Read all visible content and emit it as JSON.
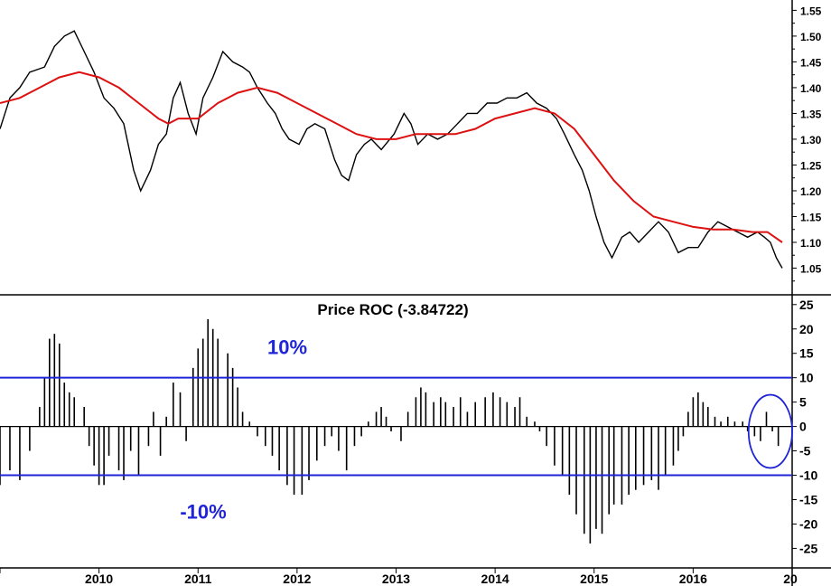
{
  "chart_data": [
    {
      "type": "line",
      "panel": "price",
      "title": "",
      "ylabel": "",
      "ylim": [
        1.0,
        1.57
      ],
      "yticks": [
        "1.55",
        "1.50",
        "1.45",
        "1.40",
        "1.35",
        "1.30",
        "1.25",
        "1.20",
        "1.15",
        "1.10",
        "1.05"
      ],
      "series": [
        {
          "color": "#000000",
          "values": [
            [
              2009.0,
              1.32
            ],
            [
              2009.1,
              1.38
            ],
            [
              2009.2,
              1.4
            ],
            [
              2009.3,
              1.43
            ],
            [
              2009.45,
              1.44
            ],
            [
              2009.55,
              1.48
            ],
            [
              2009.65,
              1.5
            ],
            [
              2009.75,
              1.51
            ],
            [
              2009.85,
              1.47
            ],
            [
              2009.95,
              1.43
            ],
            [
              2010.05,
              1.38
            ],
            [
              2010.15,
              1.36
            ],
            [
              2010.25,
              1.33
            ],
            [
              2010.35,
              1.24
            ],
            [
              2010.42,
              1.2
            ],
            [
              2010.52,
              1.24
            ],
            [
              2010.6,
              1.29
            ],
            [
              2010.68,
              1.31
            ],
            [
              2010.75,
              1.38
            ],
            [
              2010.82,
              1.41
            ],
            [
              2010.9,
              1.35
            ],
            [
              2010.98,
              1.31
            ],
            [
              2011.05,
              1.38
            ],
            [
              2011.15,
              1.42
            ],
            [
              2011.25,
              1.47
            ],
            [
              2011.35,
              1.45
            ],
            [
              2011.45,
              1.44
            ],
            [
              2011.52,
              1.43
            ],
            [
              2011.6,
              1.4
            ],
            [
              2011.7,
              1.37
            ],
            [
              2011.78,
              1.35
            ],
            [
              2011.85,
              1.32
            ],
            [
              2011.92,
              1.3
            ],
            [
              2012.02,
              1.29
            ],
            [
              2012.1,
              1.32
            ],
            [
              2012.18,
              1.33
            ],
            [
              2012.28,
              1.32
            ],
            [
              2012.38,
              1.26
            ],
            [
              2012.45,
              1.23
            ],
            [
              2012.52,
              1.22
            ],
            [
              2012.6,
              1.27
            ],
            [
              2012.68,
              1.29
            ],
            [
              2012.75,
              1.3
            ],
            [
              2012.85,
              1.28
            ],
            [
              2012.98,
              1.31
            ],
            [
              2013.08,
              1.35
            ],
            [
              2013.15,
              1.33
            ],
            [
              2013.22,
              1.29
            ],
            [
              2013.32,
              1.31
            ],
            [
              2013.42,
              1.3
            ],
            [
              2013.52,
              1.31
            ],
            [
              2013.62,
              1.33
            ],
            [
              2013.72,
              1.35
            ],
            [
              2013.82,
              1.35
            ],
            [
              2013.92,
              1.37
            ],
            [
              2014.02,
              1.37
            ],
            [
              2014.12,
              1.38
            ],
            [
              2014.22,
              1.38
            ],
            [
              2014.32,
              1.39
            ],
            [
              2014.42,
              1.37
            ],
            [
              2014.52,
              1.36
            ],
            [
              2014.62,
              1.34
            ],
            [
              2014.7,
              1.31
            ],
            [
              2014.8,
              1.27
            ],
            [
              2014.88,
              1.24
            ],
            [
              2014.95,
              1.2
            ],
            [
              2015.02,
              1.15
            ],
            [
              2015.1,
              1.1
            ],
            [
              2015.18,
              1.07
            ],
            [
              2015.28,
              1.11
            ],
            [
              2015.36,
              1.12
            ],
            [
              2015.45,
              1.1
            ],
            [
              2015.55,
              1.12
            ],
            [
              2015.65,
              1.14
            ],
            [
              2015.75,
              1.12
            ],
            [
              2015.85,
              1.08
            ],
            [
              2015.95,
              1.09
            ],
            [
              2016.05,
              1.09
            ],
            [
              2016.15,
              1.12
            ],
            [
              2016.25,
              1.14
            ],
            [
              2016.35,
              1.13
            ],
            [
              2016.45,
              1.12
            ],
            [
              2016.55,
              1.11
            ],
            [
              2016.65,
              1.12
            ],
            [
              2016.72,
              1.11
            ],
            [
              2016.78,
              1.1
            ],
            [
              2016.84,
              1.07
            ],
            [
              2016.9,
              1.05
            ]
          ]
        },
        {
          "color": "#dd1111",
          "values": [
            [
              2009.0,
              1.37
            ],
            [
              2009.2,
              1.38
            ],
            [
              2009.4,
              1.4
            ],
            [
              2009.6,
              1.42
            ],
            [
              2009.8,
              1.43
            ],
            [
              2010.0,
              1.42
            ],
            [
              2010.2,
              1.4
            ],
            [
              2010.4,
              1.37
            ],
            [
              2010.6,
              1.34
            ],
            [
              2010.7,
              1.33
            ],
            [
              2010.8,
              1.34
            ],
            [
              2011.0,
              1.34
            ],
            [
              2011.2,
              1.37
            ],
            [
              2011.4,
              1.39
            ],
            [
              2011.6,
              1.4
            ],
            [
              2011.8,
              1.39
            ],
            [
              2012.0,
              1.37
            ],
            [
              2012.2,
              1.35
            ],
            [
              2012.4,
              1.33
            ],
            [
              2012.6,
              1.31
            ],
            [
              2012.8,
              1.3
            ],
            [
              2013.0,
              1.3
            ],
            [
              2013.2,
              1.31
            ],
            [
              2013.4,
              1.31
            ],
            [
              2013.6,
              1.31
            ],
            [
              2013.8,
              1.32
            ],
            [
              2014.0,
              1.34
            ],
            [
              2014.2,
              1.35
            ],
            [
              2014.4,
              1.36
            ],
            [
              2014.6,
              1.35
            ],
            [
              2014.8,
              1.32
            ],
            [
              2015.0,
              1.27
            ],
            [
              2015.2,
              1.22
            ],
            [
              2015.4,
              1.18
            ],
            [
              2015.6,
              1.15
            ],
            [
              2015.8,
              1.14
            ],
            [
              2016.0,
              1.13
            ],
            [
              2016.2,
              1.125
            ],
            [
              2016.4,
              1.125
            ],
            [
              2016.6,
              1.12
            ],
            [
              2016.75,
              1.12
            ],
            [
              2016.9,
              1.1
            ]
          ]
        }
      ]
    },
    {
      "type": "bar",
      "panel": "roc",
      "title": "Price ROC (-3.84722)",
      "ylabel": "",
      "ylim": [
        -29,
        27
      ],
      "yticks": [
        "25",
        "20",
        "15",
        "10",
        "5",
        "0",
        "-5",
        "-10",
        "-15",
        "-20",
        "-25"
      ],
      "xticks": [
        "2010",
        "2011",
        "2012",
        "2013",
        "2014",
        "2015",
        "2016",
        "20"
      ],
      "bar_color": "#000000",
      "reference_lines": [
        {
          "value": 10,
          "label": "10%",
          "color": "#1f24d6"
        },
        {
          "value": -10,
          "label": "-10%",
          "color": "#1f24d6"
        }
      ],
      "highlight_ellipse": {
        "x_center": 2016.78,
        "y_center": -1,
        "x_radius": 0.22,
        "y_radius": 7.5,
        "color": "#1f24d6"
      },
      "values": [
        [
          2009.0,
          -12
        ],
        [
          2009.1,
          -9
        ],
        [
          2009.2,
          -11
        ],
        [
          2009.3,
          -5
        ],
        [
          2009.4,
          4
        ],
        [
          2009.45,
          10
        ],
        [
          2009.5,
          18
        ],
        [
          2009.55,
          19
        ],
        [
          2009.6,
          17
        ],
        [
          2009.65,
          9
        ],
        [
          2009.7,
          7
        ],
        [
          2009.75,
          6
        ],
        [
          2009.85,
          4
        ],
        [
          2009.9,
          -4
        ],
        [
          2009.95,
          -8
        ],
        [
          2010.0,
          -12
        ],
        [
          2010.05,
          -12
        ],
        [
          2010.1,
          -6
        ],
        [
          2010.2,
          -9
        ],
        [
          2010.25,
          -11
        ],
        [
          2010.32,
          -5
        ],
        [
          2010.4,
          -10
        ],
        [
          2010.5,
          -4
        ],
        [
          2010.55,
          3
        ],
        [
          2010.62,
          -6
        ],
        [
          2010.68,
          2
        ],
        [
          2010.75,
          9
        ],
        [
          2010.82,
          7
        ],
        [
          2010.88,
          -3
        ],
        [
          2010.95,
          12
        ],
        [
          2011.0,
          16
        ],
        [
          2011.05,
          18
        ],
        [
          2011.1,
          22
        ],
        [
          2011.15,
          20
        ],
        [
          2011.2,
          18
        ],
        [
          2011.3,
          15
        ],
        [
          2011.35,
          12
        ],
        [
          2011.4,
          8
        ],
        [
          2011.45,
          3
        ],
        [
          2011.52,
          1
        ],
        [
          2011.6,
          -2
        ],
        [
          2011.68,
          -4
        ],
        [
          2011.75,
          -6
        ],
        [
          2011.82,
          -9
        ],
        [
          2011.9,
          -12
        ],
        [
          2011.97,
          -14
        ],
        [
          2012.05,
          -14
        ],
        [
          2012.12,
          -11
        ],
        [
          2012.2,
          -7
        ],
        [
          2012.28,
          -4
        ],
        [
          2012.35,
          -2
        ],
        [
          2012.42,
          -5
        ],
        [
          2012.5,
          -9
        ],
        [
          2012.58,
          -4
        ],
        [
          2012.65,
          -2
        ],
        [
          2012.72,
          1
        ],
        [
          2012.8,
          3
        ],
        [
          2012.85,
          4
        ],
        [
          2012.9,
          2
        ],
        [
          2012.95,
          -1
        ],
        [
          2013.05,
          -3
        ],
        [
          2013.12,
          3
        ],
        [
          2013.2,
          6
        ],
        [
          2013.25,
          8
        ],
        [
          2013.3,
          7
        ],
        [
          2013.38,
          5
        ],
        [
          2013.45,
          6
        ],
        [
          2013.5,
          5
        ],
        [
          2013.58,
          4
        ],
        [
          2013.65,
          6
        ],
        [
          2013.72,
          3
        ],
        [
          2013.8,
          5
        ],
        [
          2013.9,
          6
        ],
        [
          2013.98,
          7
        ],
        [
          2014.05,
          6
        ],
        [
          2014.12,
          5
        ],
        [
          2014.2,
          4
        ],
        [
          2014.25,
          6
        ],
        [
          2014.32,
          2
        ],
        [
          2014.4,
          1
        ],
        [
          2014.45,
          -1
        ],
        [
          2014.52,
          -4
        ],
        [
          2014.6,
          -8
        ],
        [
          2014.68,
          -10
        ],
        [
          2014.75,
          -14
        ],
        [
          2014.82,
          -18
        ],
        [
          2014.9,
          -22
        ],
        [
          2014.96,
          -24
        ],
        [
          2015.02,
          -21
        ],
        [
          2015.08,
          -22
        ],
        [
          2015.15,
          -18
        ],
        [
          2015.2,
          -16
        ],
        [
          2015.28,
          -16
        ],
        [
          2015.35,
          -14
        ],
        [
          2015.42,
          -13
        ],
        [
          2015.5,
          -12
        ],
        [
          2015.58,
          -11
        ],
        [
          2015.65,
          -13
        ],
        [
          2015.72,
          -10
        ],
        [
          2015.8,
          -8
        ],
        [
          2015.85,
          -5
        ],
        [
          2015.9,
          -2
        ],
        [
          2015.95,
          3
        ],
        [
          2016.0,
          6
        ],
        [
          2016.05,
          7
        ],
        [
          2016.1,
          5
        ],
        [
          2016.15,
          4
        ],
        [
          2016.22,
          2
        ],
        [
          2016.28,
          1
        ],
        [
          2016.35,
          2
        ],
        [
          2016.42,
          1
        ],
        [
          2016.5,
          1
        ],
        [
          2016.55,
          -1
        ],
        [
          2016.62,
          -2
        ],
        [
          2016.68,
          -3
        ],
        [
          2016.74,
          3
        ],
        [
          2016.8,
          -1
        ],
        [
          2016.86,
          -4
        ]
      ]
    }
  ]
}
